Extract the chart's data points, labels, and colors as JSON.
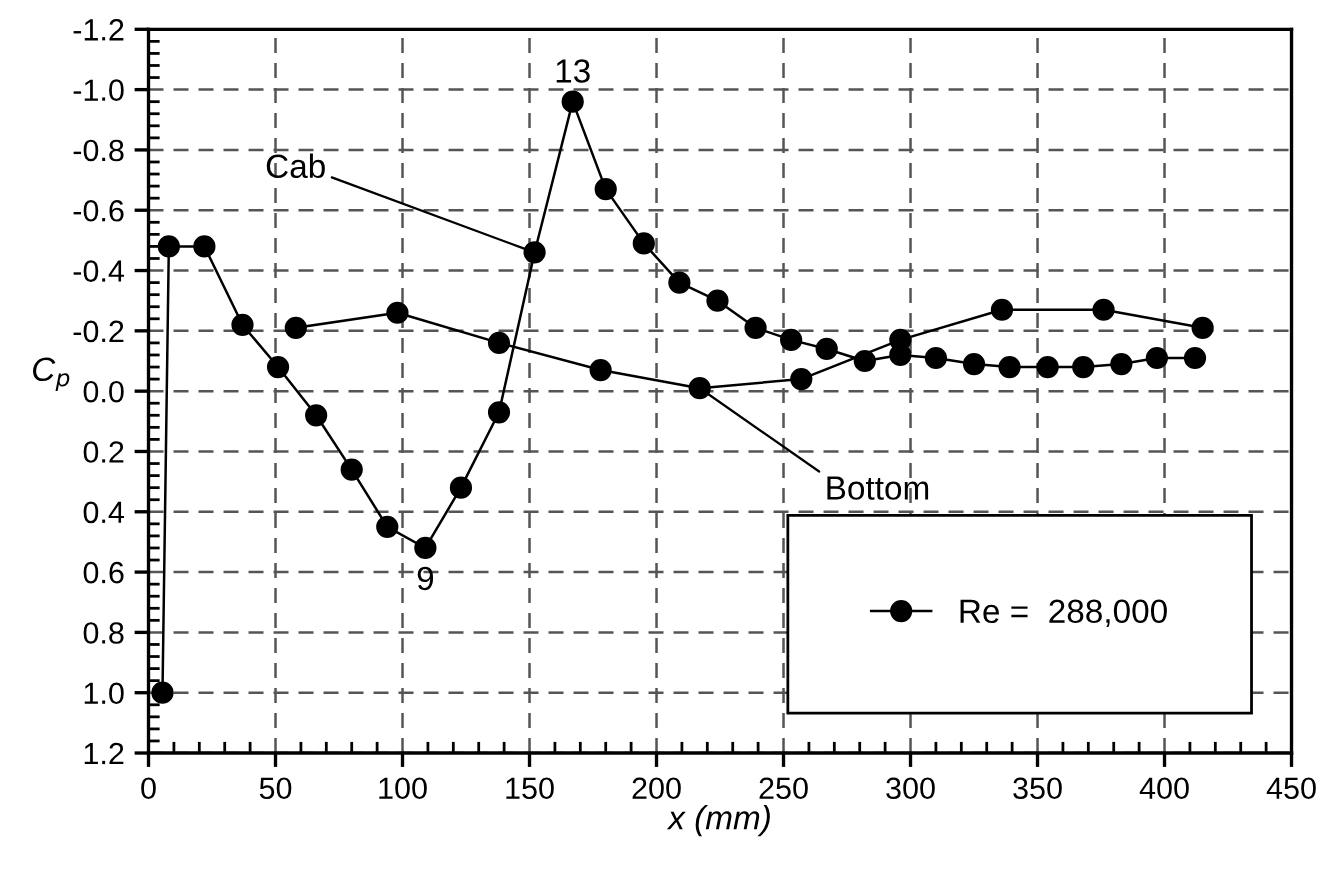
{
  "chart_data": {
    "type": "line",
    "xlabel": "x (mm)",
    "ylabel": "C$_{p}$",
    "legend": "bottom right",
    "grid": true,
    "marker": "circle",
    "line_style": "solid",
    "xlim": [
      0,
      450
    ],
    "xticks": [
      0,
      50,
      100,
      150,
      200,
      250,
      300,
      350,
      400,
      450
    ],
    "ylim": [
      1.2,
      -1.2
    ],
    "yticks": [
      {
        "value": -1.2,
        "label": "-1.2"
      },
      {
        "value": -1.0,
        "label": "-1.0"
      },
      {
        "value": -0.8,
        "label": "-0.8"
      },
      {
        "value": -0.6,
        "label": "-0.6"
      },
      {
        "value": -0.4,
        "label": "-0.4"
      },
      {
        "value": -0.2,
        "label": "-0.2"
      },
      {
        "value": 0,
        "label": "0.0"
      },
      {
        "value": 0.2,
        "label": "0.2"
      },
      {
        "value": 0.4,
        "label": "0.4"
      },
      {
        "value": 0.6,
        "label": "0.6"
      },
      {
        "value": 0.8,
        "label": "0.8"
      },
      {
        "value": 1.0,
        "label": "1.0"
      },
      {
        "value": 1.2,
        "label": "1.2"
      }
    ],
    "series": [
      {
        "name": "Re =  288,000",
        "color": "#000000",
        "x": [
          5.5,
          8,
          22,
          37,
          51,
          66,
          80,
          94,
          109,
          123,
          138,
          152,
          167,
          180,
          195,
          209,
          224,
          239,
          253,
          267,
          282,
          296,
          310,
          325,
          339,
          354,
          368,
          383,
          397,
          412
        ],
        "values": [
          1.0,
          -0.48,
          -0.48,
          -0.22,
          -0.08,
          0.08,
          0.26,
          0.45,
          0.52,
          0.32,
          0.07,
          -0.46,
          -0.96,
          -0.67,
          -0.49,
          -0.36,
          -0.3,
          -0.21,
          -0.17,
          -0.14,
          -0.1,
          -0.12,
          -0.11,
          -0.09,
          -0.08,
          -0.08,
          -0.08,
          -0.09,
          -0.11,
          -0.11
        ]
      },
      {
        "color": "#000000",
        "x": [
          58,
          98,
          138,
          178,
          217,
          257,
          296,
          336,
          376,
          415
        ],
        "values": [
          -0.21,
          -0.26,
          -0.16,
          -0.07,
          -0.01,
          -0.04,
          -0.17,
          -0.27,
          -0.27,
          -0.21
        ]
      }
    ],
    "annotations": [
      {
        "text": "13",
        "x": 167,
        "y": -0.96
      },
      {
        "text": "9",
        "x": 109,
        "y": 0.52
      },
      {
        "text": "Cab",
        "x": 152,
        "y": -0.46
      },
      {
        "text": "Bottom",
        "x": 217,
        "y": -0.01
      }
    ]
  }
}
